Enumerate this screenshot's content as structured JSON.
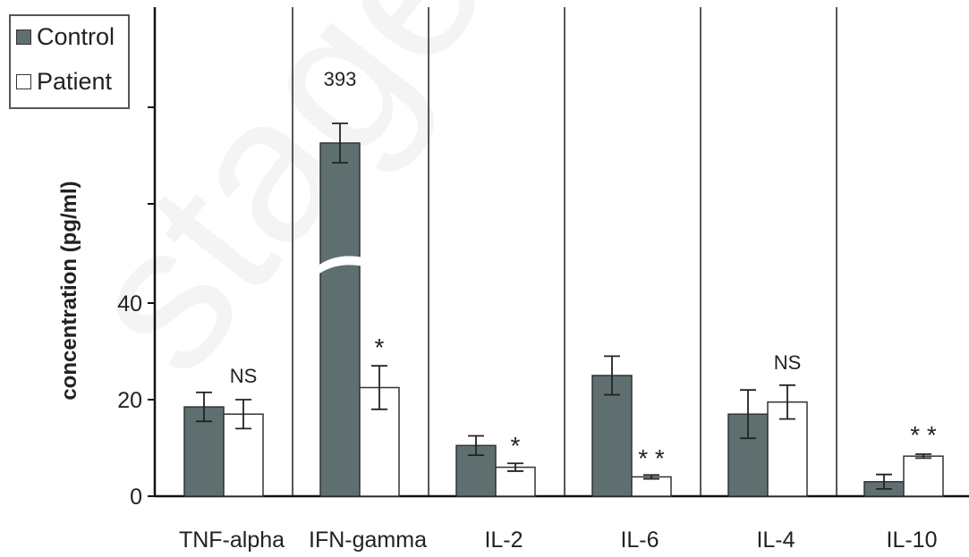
{
  "chart_data": {
    "type": "bar",
    "ylabel": "concentration (pg/ml)",
    "xlabel": "",
    "y_ticks": [
      "0",
      "20",
      "40"
    ],
    "y_lower_range": [
      0,
      40
    ],
    "axis_break": true,
    "categories": [
      "TNF-alpha",
      "IFN-gamma",
      "IL-2",
      "IL-6",
      "IL-4",
      "IL-10"
    ],
    "series": [
      {
        "name": "Control",
        "color": "#5f6f6f",
        "values": [
          18.5,
          393,
          10.5,
          25,
          17,
          3
        ],
        "errors": [
          3,
          20,
          2,
          4,
          5,
          1.5
        ]
      },
      {
        "name": "Patient",
        "color": "#ffffff",
        "values": [
          17,
          22.5,
          6,
          4,
          19.5,
          8.3
        ],
        "errors": [
          3,
          4.5,
          0.8,
          0.4,
          3.5,
          0.4
        ]
      }
    ],
    "annotations": [
      "NS",
      "393",
      "*",
      "*",
      "* *",
      "NS",
      "* *"
    ],
    "legend": {
      "position": "top-left"
    }
  }
}
